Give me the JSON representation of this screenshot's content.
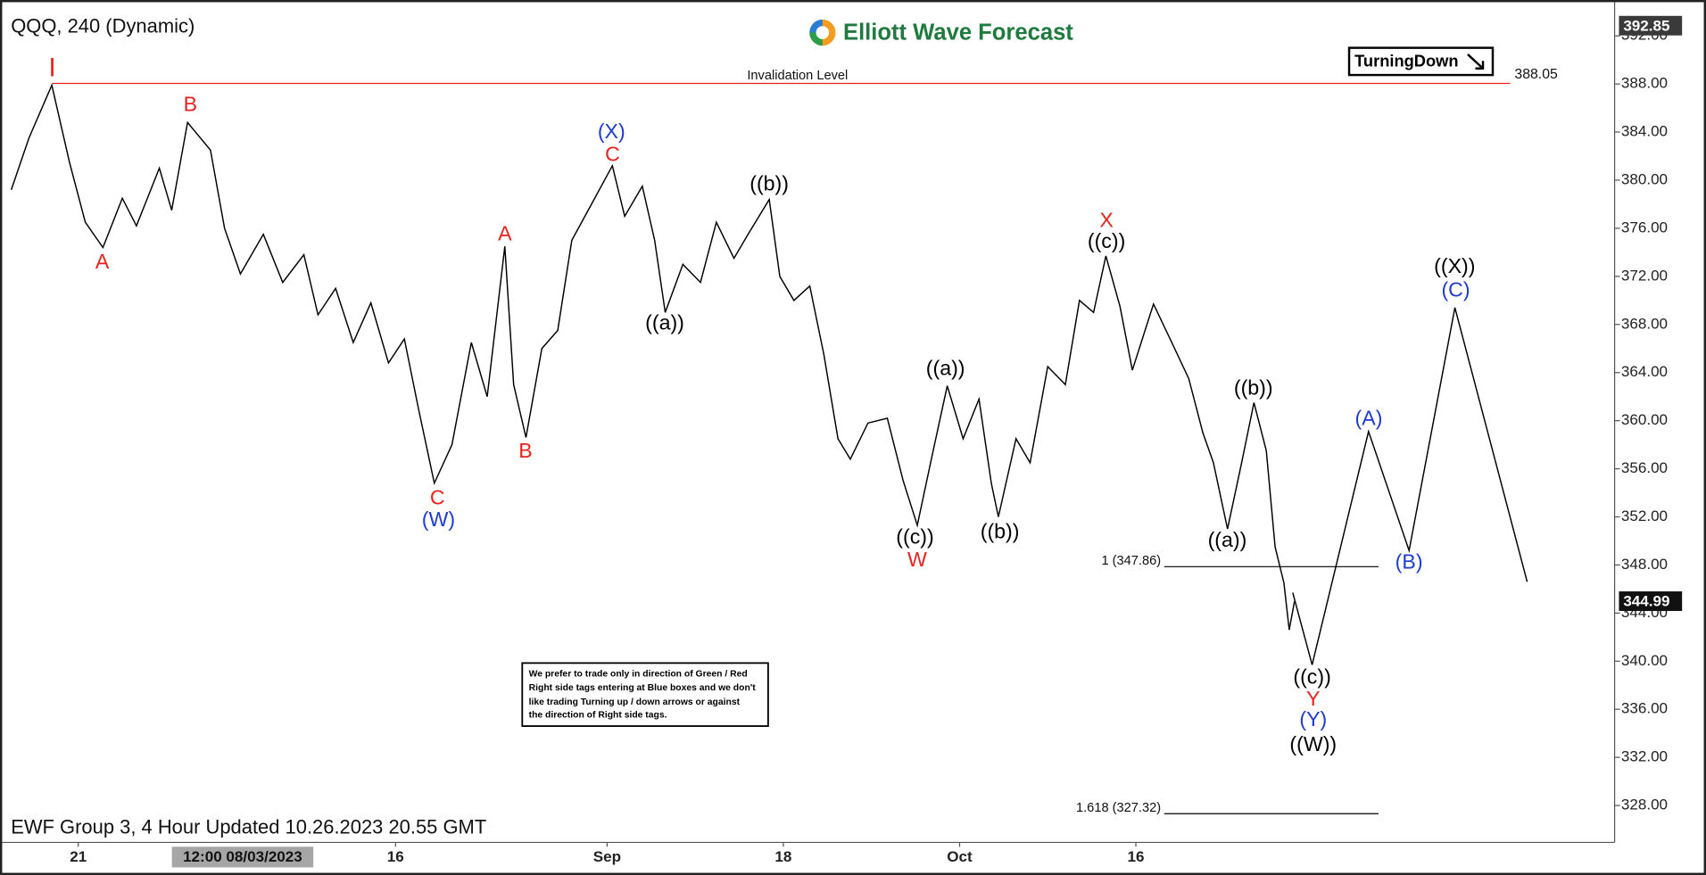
{
  "chart_data": {
    "type": "line",
    "title": "QQQ, 240 (Dynamic)",
    "brand": "Elliott Wave Forecast",
    "footer": "EWF Group 3, 4 Hour Updated 10.26.2023 20.55 GMT",
    "cursor_label": "12:00 08/03/2023",
    "badge": "TurningDown",
    "note": [
      "We prefer to trade only in direction of Green / Red",
      "Right side tags entering at Blue boxes and we don't",
      "like trading Turning up / down arrows or against",
      "the direction of Right side tags."
    ],
    "xlim": [
      -4.44,
      87.16
    ],
    "ylim": [
      324.93,
      394.08
    ],
    "xticks": [
      {
        "value": 0,
        "label": "21"
      },
      {
        "value": 18,
        "label": "16"
      },
      {
        "value": 30,
        "label": "Sep"
      },
      {
        "value": 40,
        "label": "18"
      },
      {
        "value": 50,
        "label": "Oct"
      },
      {
        "value": 60,
        "label": "16"
      }
    ],
    "yticks": [
      {
        "value": 328,
        "label": "328.00"
      },
      {
        "value": 332,
        "label": "332.00"
      },
      {
        "value": 336,
        "label": "336.00"
      },
      {
        "value": 340,
        "label": "340.00"
      },
      {
        "value": 344,
        "label": "344.00"
      },
      {
        "value": 348,
        "label": "348.00"
      },
      {
        "value": 352,
        "label": "352.00"
      },
      {
        "value": 356,
        "label": "356.00"
      },
      {
        "value": 360,
        "label": "360.00"
      },
      {
        "value": 364,
        "label": "364.00"
      },
      {
        "value": 368,
        "label": "368.00"
      },
      {
        "value": 372,
        "label": "372.00"
      },
      {
        "value": 376,
        "label": "376.00"
      },
      {
        "value": 380,
        "label": "380.00"
      },
      {
        "value": 384,
        "label": "384.00"
      },
      {
        "value": 388,
        "label": "388.00"
      },
      {
        "value": 392,
        "label": "392.00"
      }
    ],
    "high_price": 392.85,
    "last_price": 344.99,
    "series": [
      {
        "color": "#000000",
        "x": [
          -3.8,
          -2.8,
          -1.5,
          -0.5,
          0.4,
          1.4,
          2.5,
          3.3,
          4.6,
          5.3,
          6.2,
          7.5,
          8.3,
          9.2,
          10.5,
          11.6,
          12.8,
          13.6,
          14.6,
          15.6,
          16.6,
          17.6,
          18.5,
          19.3,
          20.2,
          21.2,
          22.3,
          23.2,
          24.2,
          24.7,
          25.4,
          26.3,
          27.2,
          28.0,
          29.3,
          30.3,
          31.0,
          32.0,
          32.7,
          33.3,
          34.3,
          35.3,
          36.2,
          37.2,
          38.0,
          39.2,
          39.8,
          40.6,
          41.5,
          42.3,
          43.1,
          43.8,
          44.8,
          45.9,
          46.8,
          47.6,
          48.5,
          49.3,
          50.2,
          51.1,
          51.8,
          52.2,
          53.2,
          54.0,
          55.0,
          56.0,
          56.8,
          57.6,
          58.3,
          59.1,
          59.8,
          61.0,
          62.2,
          63.0,
          63.8,
          64.4,
          65.2,
          66.0,
          66.7,
          67.4,
          67.9,
          68.4,
          68.7,
          69.0
        ],
        "values": [
          379.2,
          383.5,
          387.9,
          381.5,
          376.5,
          374.4,
          378.5,
          376.2,
          381.0,
          377.5,
          384.8,
          382.5,
          376.0,
          372.2,
          375.5,
          371.5,
          373.8,
          368.8,
          371.0,
          366.5,
          369.8,
          364.8,
          366.8,
          361.0,
          354.8,
          358.0,
          366.5,
          362.0,
          374.5,
          363.0,
          358.6,
          366.0,
          367.5,
          375.0,
          378.5,
          381.2,
          377.0,
          379.5,
          375.0,
          369.0,
          373.0,
          371.5,
          376.5,
          373.5,
          375.5,
          378.4,
          372.0,
          370.0,
          371.2,
          365.5,
          358.5,
          356.8,
          359.8,
          360.2,
          355.0,
          351.3,
          357.5,
          362.9,
          358.5,
          361.8,
          354.8,
          352.0,
          358.5,
          356.5,
          364.5,
          363.0,
          370.0,
          369.0,
          373.7,
          369.5,
          364.2,
          369.7,
          366.0,
          363.5,
          359.0,
          356.5,
          351.0,
          356.5,
          361.5,
          357.5,
          349.5,
          346.5,
          342.6,
          344.99
        ]
      },
      {
        "color": "#000000",
        "x": [
          68.9,
          70.0,
          73.2,
          75.5,
          78.1,
          82.2
        ],
        "values": [
          345.7,
          339.7,
          359.1,
          349.2,
          369.4,
          346.6
        ]
      }
    ],
    "levels": [
      {
        "name": "Invalidation Level",
        "value": 388.05,
        "value_label": "388.05",
        "color": "#e8231f"
      },
      {
        "value": 347.86,
        "label": "1 (347.86)",
        "color": "#000000"
      },
      {
        "value": 327.32,
        "label": "1.618 (327.32)",
        "color": "#000000"
      }
    ],
    "annotations": [
      {
        "text": "I",
        "color": "#e8231f"
      },
      {
        "text": "A",
        "color": "#e8231f"
      },
      {
        "text": "B",
        "color": "#e8231f"
      },
      {
        "text": "C",
        "color": "#e8231f"
      },
      {
        "text": "(W)",
        "color": "#1e3bd6"
      },
      {
        "text": "A",
        "color": "#e8231f"
      },
      {
        "text": "B",
        "color": "#e8231f"
      },
      {
        "text": "(X)",
        "color": "#1e3bd6"
      },
      {
        "text": "C",
        "color": "#e8231f"
      },
      {
        "text": "((a))",
        "color": "#000000"
      },
      {
        "text": "((b))",
        "color": "#000000"
      },
      {
        "text": "((a))",
        "color": "#000000"
      },
      {
        "text": "((c))",
        "color": "#000000"
      },
      {
        "text": "W",
        "color": "#e8231f"
      },
      {
        "text": "((b))",
        "color": "#000000"
      },
      {
        "text": "X",
        "color": "#e8231f"
      },
      {
        "text": "((c))",
        "color": "#000000"
      },
      {
        "text": "((a))",
        "color": "#000000"
      },
      {
        "text": "((b))",
        "color": "#000000"
      },
      {
        "text": "((c))",
        "color": "#000000"
      },
      {
        "text": "Y",
        "color": "#e8231f"
      },
      {
        "text": "(Y)",
        "color": "#1e3bd6"
      },
      {
        "text": "((W))",
        "color": "#000000"
      },
      {
        "text": "(A)",
        "color": "#1e3bd6"
      },
      {
        "text": "(B)",
        "color": "#1e3bd6"
      },
      {
        "text": "((X))",
        "color": "#000000"
      },
      {
        "text": "(C)",
        "color": "#1e3bd6"
      }
    ]
  }
}
